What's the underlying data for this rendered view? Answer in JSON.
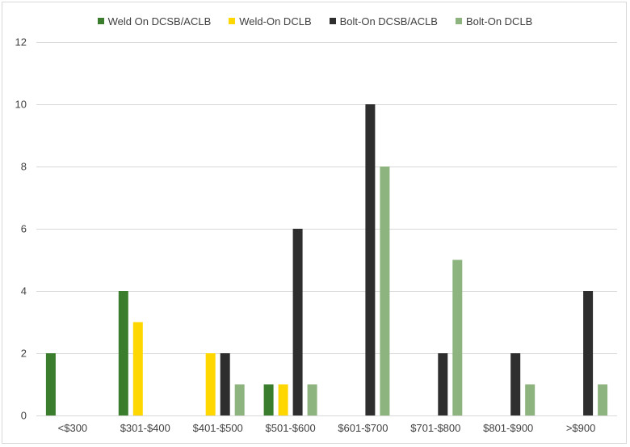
{
  "chart_data": {
    "type": "bar",
    "categories": [
      "<$300",
      "$301-$400",
      "$401-$500",
      "$501-$600",
      "$601-$700",
      "$701-$800",
      "$801-$900",
      ">$900"
    ],
    "series": [
      {
        "name": "Weld On DCSB/ACLB",
        "color": "#3a7d2c",
        "values": [
          2,
          4,
          0,
          1,
          0,
          0,
          0,
          0
        ]
      },
      {
        "name": "Weld-On DCLB",
        "color": "#ffd700",
        "values": [
          0,
          3,
          2,
          1,
          0,
          0,
          0,
          0
        ]
      },
      {
        "name": "Bolt-On DCSB/ACLB",
        "color": "#2e2e2e",
        "values": [
          0,
          0,
          2,
          6,
          10,
          2,
          2,
          4
        ]
      },
      {
        "name": "Bolt-On DCLB",
        "color": "#8db37f",
        "values": [
          0,
          0,
          1,
          1,
          8,
          5,
          1,
          1
        ]
      }
    ],
    "yticks": [
      0,
      2,
      4,
      6,
      8,
      10,
      12
    ],
    "ylim": [
      0,
      12
    ],
    "grid": true,
    "legend_position": "top-center"
  }
}
